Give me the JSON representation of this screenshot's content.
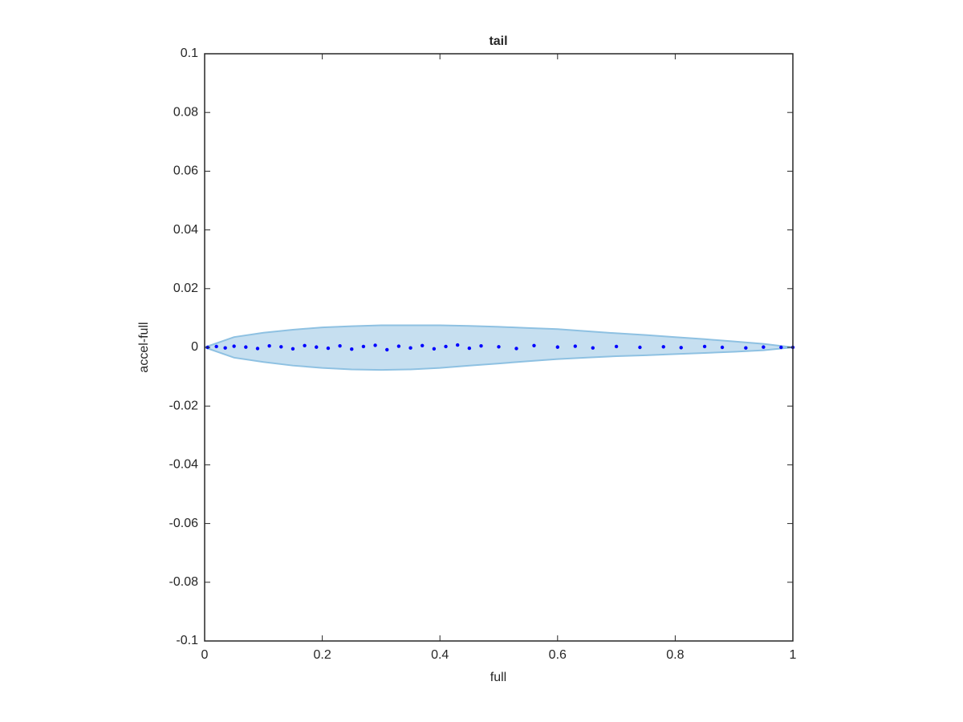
{
  "chart_data": {
    "type": "scatter",
    "title": "tail",
    "x_label": "full",
    "y_label": "accel-full",
    "xlim": [
      0,
      1
    ],
    "ylim": [
      -0.1,
      0.1
    ],
    "xticks": [
      0,
      0.2,
      0.4,
      0.6,
      0.8,
      1
    ],
    "yticks": [
      -0.1,
      -0.08,
      -0.06,
      -0.04,
      -0.02,
      0,
      0.02,
      0.04,
      0.06,
      0.08,
      0.1
    ],
    "band": {
      "color": "#c6dff0",
      "edge_color": "#8ec1e2",
      "x": [
        0,
        0.05,
        0.1,
        0.15,
        0.2,
        0.25,
        0.3,
        0.35,
        0.4,
        0.45,
        0.5,
        0.55,
        0.6,
        0.65,
        0.7,
        0.75,
        0.8,
        0.85,
        0.9,
        0.95,
        1
      ],
      "upper": [
        0,
        0.0035,
        0.005,
        0.006,
        0.0068,
        0.0072,
        0.0075,
        0.0075,
        0.0075,
        0.0073,
        0.007,
        0.0066,
        0.0062,
        0.0055,
        0.0048,
        0.0042,
        0.0035,
        0.0028,
        0.002,
        0.0012,
        0
      ],
      "lower": [
        0,
        -0.0035,
        -0.005,
        -0.0062,
        -0.007,
        -0.0075,
        -0.0077,
        -0.0075,
        -0.007,
        -0.0062,
        -0.0055,
        -0.0047,
        -0.004,
        -0.0035,
        -0.003,
        -0.0027,
        -0.0023,
        -0.0019,
        -0.0015,
        -0.001,
        0
      ]
    },
    "points": {
      "color": "#0000ff",
      "x": [
        0.005,
        0.02,
        0.035,
        0.05,
        0.07,
        0.09,
        0.11,
        0.13,
        0.15,
        0.17,
        0.19,
        0.21,
        0.23,
        0.25,
        0.27,
        0.29,
        0.31,
        0.33,
        0.35,
        0.37,
        0.39,
        0.41,
        0.43,
        0.45,
        0.47,
        0.5,
        0.53,
        0.56,
        0.6,
        0.63,
        0.66,
        0.7,
        0.74,
        0.78,
        0.81,
        0.85,
        0.88,
        0.92,
        0.95,
        0.98,
        1
      ],
      "y": [
        0,
        0.0003,
        -0.0002,
        0.0004,
        0.0001,
        -0.0004,
        0.0005,
        0.0002,
        -0.0005,
        0.0006,
        0.0001,
        -0.0003,
        0.0005,
        -0.0006,
        0.0003,
        0.0007,
        -0.0008,
        0.0004,
        -0.0002,
        0.0006,
        -0.0005,
        0.0003,
        0.0008,
        -0.0003,
        0.0005,
        0.0002,
        -0.0004,
        0.0006,
        0.0001,
        0.0004,
        -0.0002,
        0.0003,
        0,
        0.0002,
        -0.0001,
        0.0003,
        0,
        -0.0002,
        0.0001,
        0,
        0
      ]
    }
  }
}
